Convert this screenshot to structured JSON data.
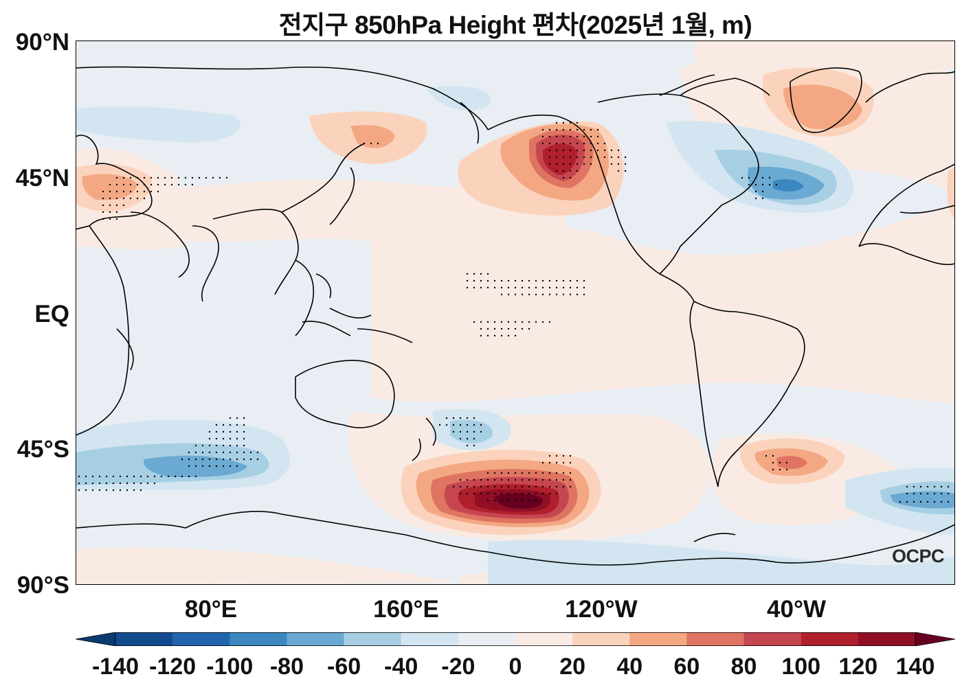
{
  "title": "전지구 850hPa Height 편차(2025년 1월, m)",
  "logo": "OCPC",
  "axes": {
    "lat_labels": [
      "90°N",
      "45°N",
      "EQ",
      "45°S",
      "90°S"
    ],
    "lon_labels": [
      "80°E",
      "160°E",
      "120°W",
      "40°W"
    ],
    "lon_range": [
      25,
      385
    ],
    "lat_range": [
      -90,
      90
    ]
  },
  "colorbar": {
    "ticks": [
      "-140",
      "-120",
      "-100",
      "-80",
      "-60",
      "-40",
      "-20",
      "0",
      "20",
      "40",
      "60",
      "80",
      "100",
      "120",
      "140"
    ],
    "extend": "both",
    "colors": [
      "#0b3b73",
      "#134b8f",
      "#2166ac",
      "#3a87c0",
      "#6aa9d1",
      "#a7cfe4",
      "#d2e5f0",
      "#e8eef3",
      "#f9ebe4",
      "#fbd3bd",
      "#f3a883",
      "#de7461",
      "#c64650",
      "#b0202c",
      "#900f26",
      "#67001f"
    ]
  },
  "map": {
    "colors": {
      "background_positive": "#f9ebe4",
      "background_negative": "#e8eef3",
      "coastline": "#000000"
    },
    "note": ""
  }
}
